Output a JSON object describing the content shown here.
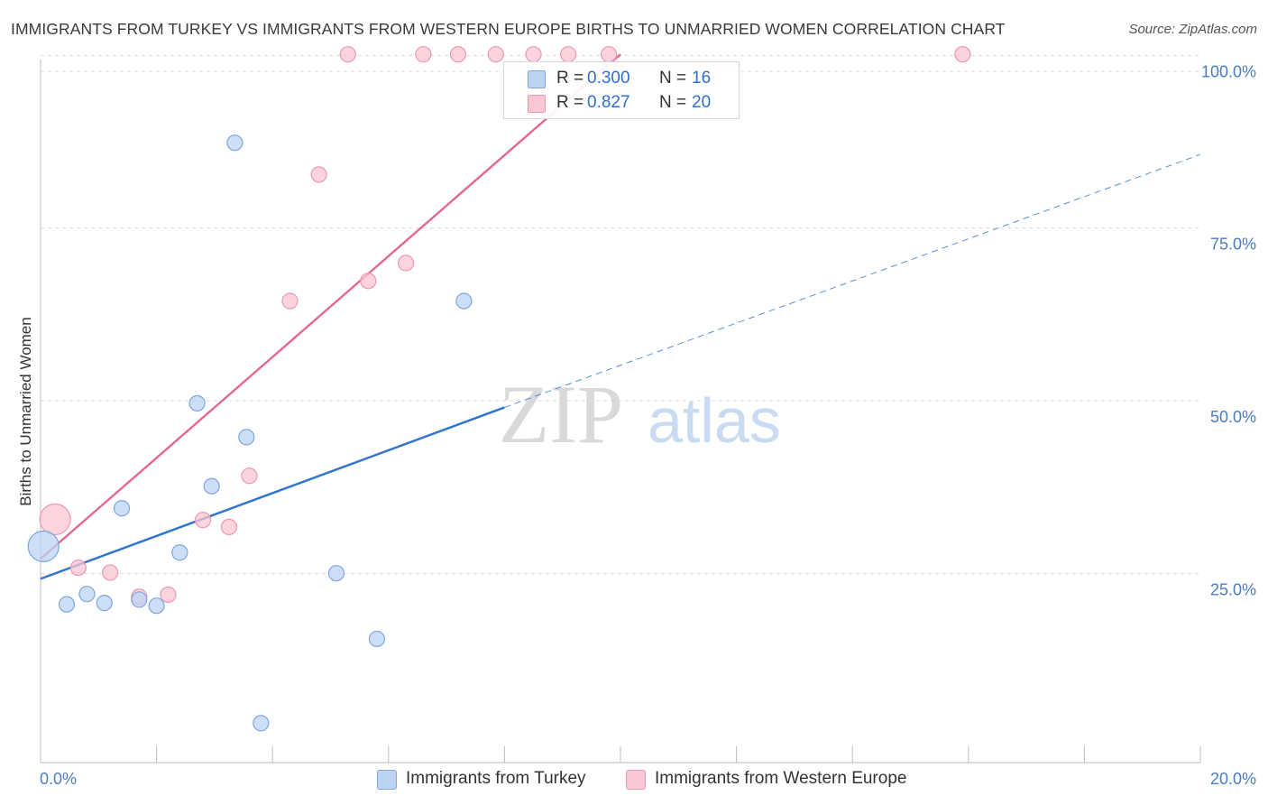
{
  "header": {
    "title": "IMMIGRANTS FROM TURKEY VS IMMIGRANTS FROM WESTERN EUROPE BIRTHS TO UNMARRIED WOMEN CORRELATION CHART",
    "source": "Source: ZipAtlas.com"
  },
  "watermark": {
    "zip": "ZIP",
    "atlas": "atlas"
  },
  "legend": {
    "r_label": "R =",
    "n_label": "N =",
    "series": [
      {
        "r": "0.300",
        "n": "16"
      },
      {
        "r": "0.827",
        "n": "20"
      }
    ]
  },
  "bottom_legend": {
    "turkey": "Immigrants from Turkey",
    "western_europe": "Immigrants from Western Europe"
  },
  "chart_data": {
    "type": "scatter",
    "title": "IMMIGRANTS FROM TURKEY VS IMMIGRANTS FROM WESTERN EUROPE BIRTHS TO UNMARRIED WOMEN CORRELATION CHART",
    "xlabel": "",
    "ylabel": "Births to Unmarried Women",
    "xlim": [
      0,
      20
    ],
    "ylim": [
      0,
      102
    ],
    "x_tick_labels": [
      "0.0%",
      "20.0%"
    ],
    "y_ticks": [
      {
        "value": 25,
        "label": "25.0%"
      },
      {
        "value": 50,
        "label": "50.0%"
      },
      {
        "value": 75,
        "label": "75.0%"
      },
      {
        "value": 100,
        "label": "100.0%"
      }
    ],
    "colors": {
      "turkey_fill": "#bcd3f3",
      "turkey_stroke": "#7ea6e0",
      "turkey_line": "#2f74d0",
      "we_fill": "#f9c6d3",
      "we_stroke": "#ec98b0",
      "we_line": "#e6678e"
    },
    "series": [
      {
        "name": "Immigrants from Turkey",
        "r": 0.3,
        "n": 16,
        "points": [
          {
            "x": 0.05,
            "y": 31.3,
            "size": "large"
          },
          {
            "x": 0.45,
            "y": 22.9
          },
          {
            "x": 0.8,
            "y": 24.4
          },
          {
            "x": 1.1,
            "y": 23.1
          },
          {
            "x": 1.4,
            "y": 36.8
          },
          {
            "x": 1.7,
            "y": 23.6
          },
          {
            "x": 2.0,
            "y": 22.7
          },
          {
            "x": 2.4,
            "y": 30.4
          },
          {
            "x": 2.7,
            "y": 52.0
          },
          {
            "x": 2.95,
            "y": 40.0
          },
          {
            "x": 3.35,
            "y": 89.7
          },
          {
            "x": 3.55,
            "y": 47.1
          },
          {
            "x": 3.8,
            "y": 5.7
          },
          {
            "x": 5.1,
            "y": 27.4
          },
          {
            "x": 5.8,
            "y": 17.9
          },
          {
            "x": 7.3,
            "y": 66.8
          }
        ],
        "trend": {
          "x0": 0,
          "y0": 26.6,
          "x1": 8.0,
          "y1": 51.4
        },
        "trend_extended": {
          "x0": 8.0,
          "y0": 51.4,
          "x1": 20.0,
          "y1": 88.0
        }
      },
      {
        "name": "Immigrants from Western Europe",
        "r": 0.827,
        "n": 20,
        "points": [
          {
            "x": 0.25,
            "y": 35.2,
            "size": "large"
          },
          {
            "x": 0.65,
            "y": 28.2
          },
          {
            "x": 1.2,
            "y": 27.5
          },
          {
            "x": 1.7,
            "y": 24.0
          },
          {
            "x": 2.2,
            "y": 24.3
          },
          {
            "x": 2.8,
            "y": 35.1
          },
          {
            "x": 3.25,
            "y": 34.1
          },
          {
            "x": 3.6,
            "y": 41.5
          },
          {
            "x": 4.3,
            "y": 66.8
          },
          {
            "x": 4.8,
            "y": 85.1
          },
          {
            "x": 5.3,
            "y": 102.5
          },
          {
            "x": 5.65,
            "y": 69.7
          },
          {
            "x": 6.3,
            "y": 72.3
          },
          {
            "x": 6.6,
            "y": 102.5
          },
          {
            "x": 7.2,
            "y": 102.5
          },
          {
            "x": 7.85,
            "y": 102.5
          },
          {
            "x": 8.5,
            "y": 102.5
          },
          {
            "x": 9.1,
            "y": 102.5
          },
          {
            "x": 9.8,
            "y": 102.5
          },
          {
            "x": 15.9,
            "y": 102.5
          }
        ],
        "trend": {
          "x0": 0,
          "y0": 29.5,
          "x1": 10.0,
          "y1": 102.5
        }
      }
    ]
  }
}
